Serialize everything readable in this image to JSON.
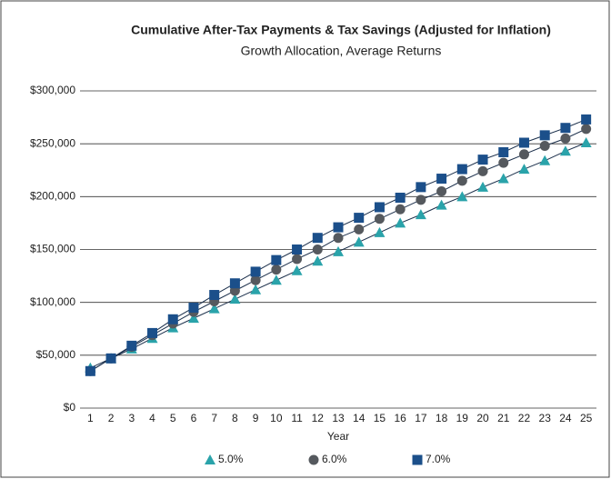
{
  "chart_data": {
    "type": "line",
    "title": "Cumulative After-Tax Payments & Tax Savings (Adjusted for Inflation)",
    "subtitle": "Growth Allocation, Average Returns",
    "x_label": "Year",
    "categories": [
      1,
      2,
      3,
      4,
      5,
      6,
      7,
      8,
      9,
      10,
      11,
      12,
      13,
      14,
      15,
      16,
      17,
      18,
      19,
      20,
      21,
      22,
      23,
      24,
      25
    ],
    "series": [
      {
        "name": "5.0%",
        "color": "#2aa3aa",
        "marker": "triangle",
        "values": [
          38000,
          47000,
          56000,
          66000,
          76000,
          85000,
          94000,
          103000,
          112000,
          121000,
          130000,
          139000,
          148000,
          157000,
          166000,
          175000,
          183000,
          192000,
          200000,
          209000,
          217000,
          226000,
          234000,
          243000,
          251000
        ]
      },
      {
        "name": "6.0%",
        "color": "#55595e",
        "marker": "circle",
        "values": [
          35000,
          47000,
          58000,
          69000,
          80000,
          91000,
          101000,
          111000,
          121000,
          131000,
          141000,
          150000,
          161000,
          169000,
          179000,
          188000,
          197000,
          205000,
          215000,
          224000,
          232000,
          240000,
          248000,
          255000,
          264000
        ]
      },
      {
        "name": "7.0%",
        "color": "#1b4f8a",
        "marker": "square",
        "values": [
          35000,
          47000,
          59000,
          71000,
          84000,
          95000,
          107000,
          118000,
          129000,
          140000,
          150000,
          161000,
          171000,
          180000,
          190000,
          199000,
          209000,
          217000,
          226000,
          235000,
          242000,
          251000,
          258000,
          265000,
          273000
        ]
      }
    ],
    "ylim": [
      0,
      300000
    ],
    "yticks": [
      {
        "value": 0,
        "label": "$0"
      },
      {
        "value": 50000,
        "label": "$50,000"
      },
      {
        "value": 100000,
        "label": "$100,000"
      },
      {
        "value": 150000,
        "label": "$150,000"
      },
      {
        "value": 200000,
        "label": "$200,000"
      },
      {
        "value": 250000,
        "label": "$250,000"
      },
      {
        "value": 300000,
        "label": "$300,000"
      }
    ],
    "grid": true,
    "legend": "bottom"
  }
}
